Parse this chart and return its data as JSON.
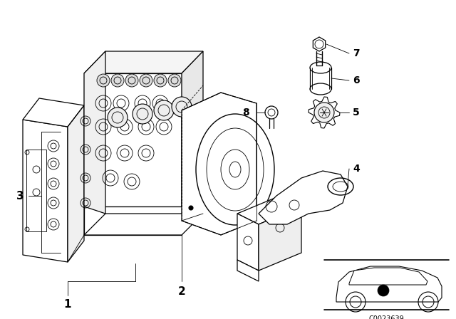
{
  "bg_color": "#ffffff",
  "line_color": "#000000",
  "figure_width": 6.4,
  "figure_height": 4.48,
  "dpi": 100,
  "diagram_code": "C0023639",
  "lw_main": 0.9,
  "lw_thin": 0.6,
  "lw_dash": 0.5
}
